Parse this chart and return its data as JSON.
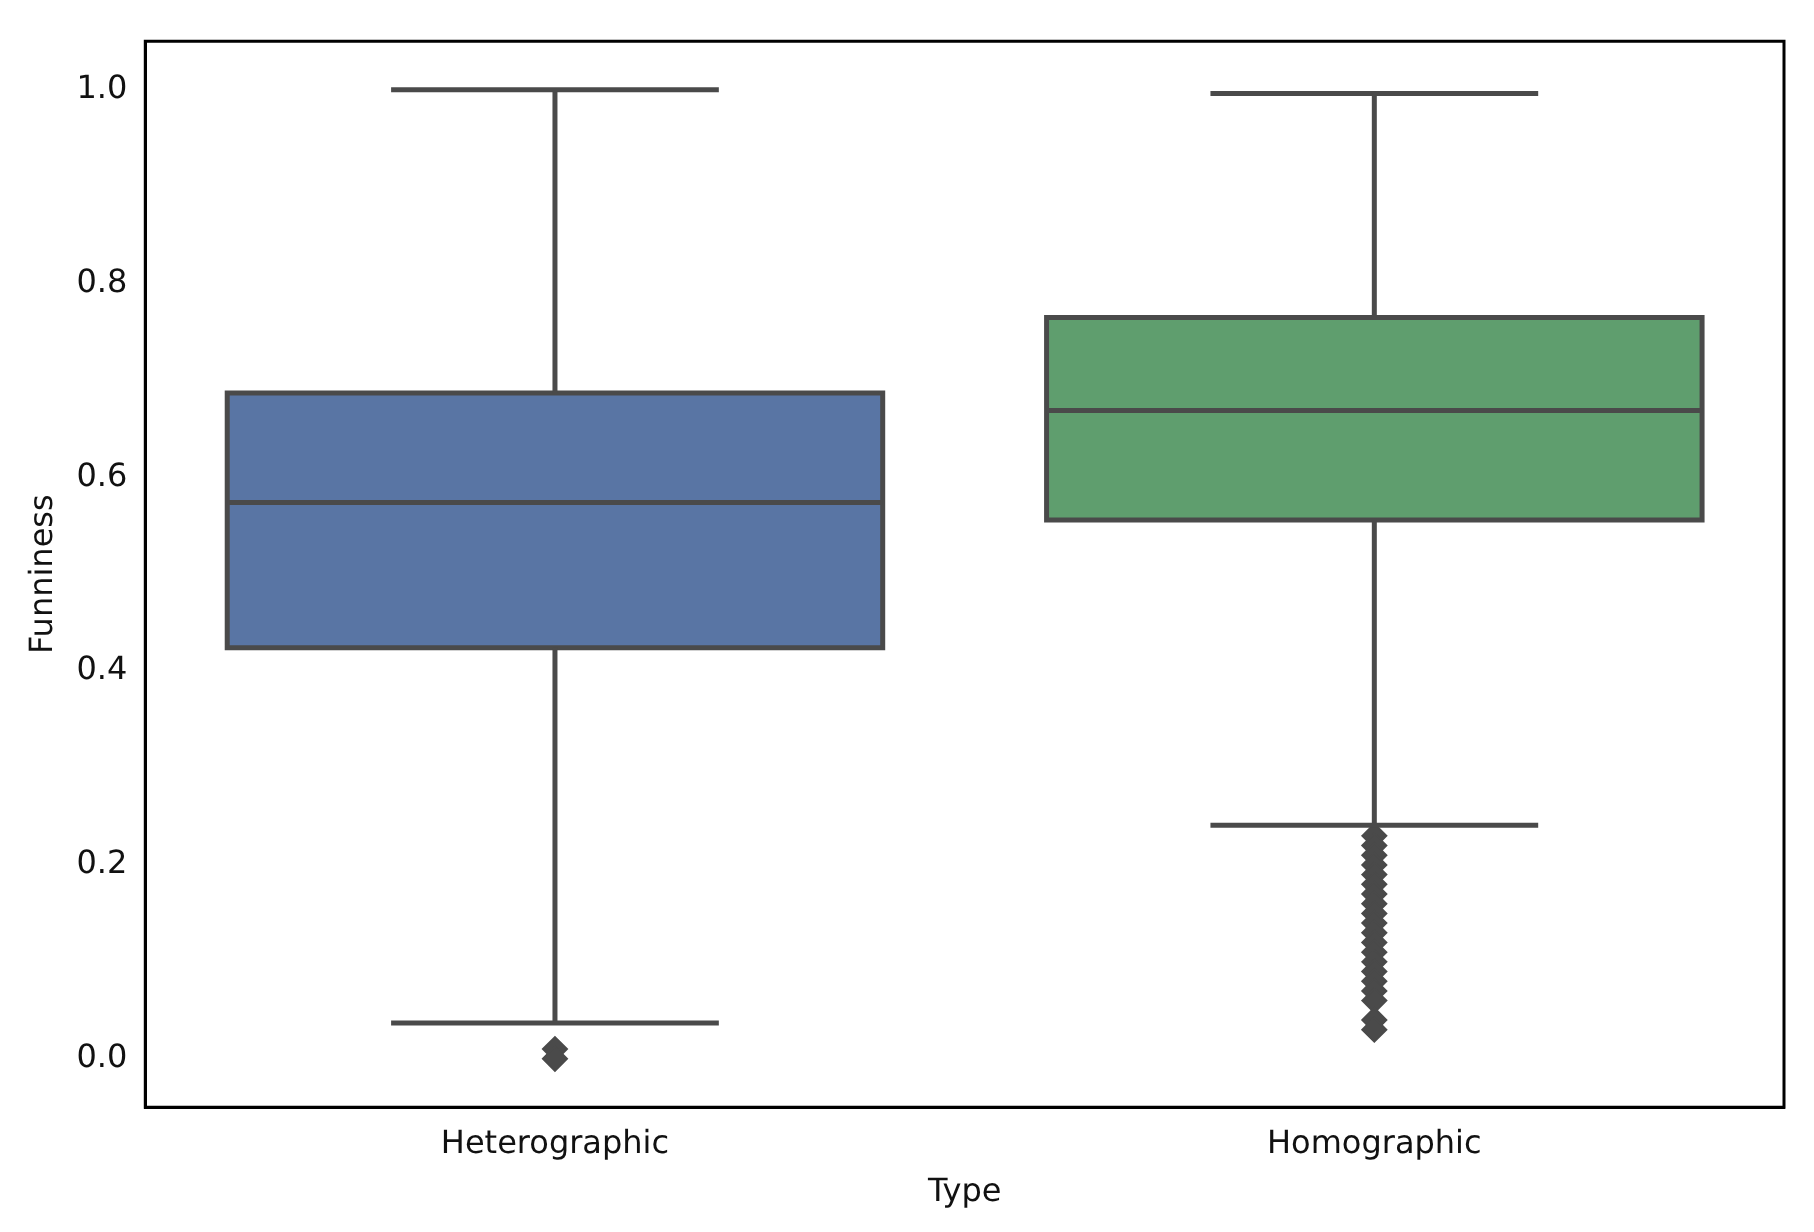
{
  "chart_data": {
    "type": "box",
    "xlabel": "Type",
    "ylabel": "Funniness",
    "categories": [
      "Heterographic",
      "Homographic"
    ],
    "colors": [
      "#5975a4",
      "#5f9e6e"
    ],
    "marker": "diamond",
    "boxes": [
      {
        "low": 0.037,
        "q1": 0.424,
        "median": 0.574,
        "q3": 0.687,
        "high": 1.0,
        "outliers": [
          0.01,
          0.0
        ]
      },
      {
        "low": 0.241,
        "q1": 0.556,
        "median": 0.669,
        "q3": 0.765,
        "high": 0.996,
        "outliers": [
          0.23,
          0.22,
          0.21,
          0.2,
          0.19,
          0.18,
          0.17,
          0.16,
          0.15,
          0.14,
          0.13,
          0.12,
          0.11,
          0.1,
          0.09,
          0.08,
          0.07,
          0.06,
          0.04,
          0.03
        ]
      }
    ],
    "ylim": [
      -0.05,
      1.05
    ],
    "yticks": [
      {
        "value": 0,
        "label": "0.0"
      },
      {
        "value": 0.2,
        "label": "0.2"
      },
      {
        "value": 0.4,
        "label": "0.4"
      },
      {
        "value": 0.6,
        "label": "0.6"
      },
      {
        "value": 0.8,
        "label": "0.8"
      },
      {
        "value": 1,
        "label": "1.0"
      }
    ]
  }
}
